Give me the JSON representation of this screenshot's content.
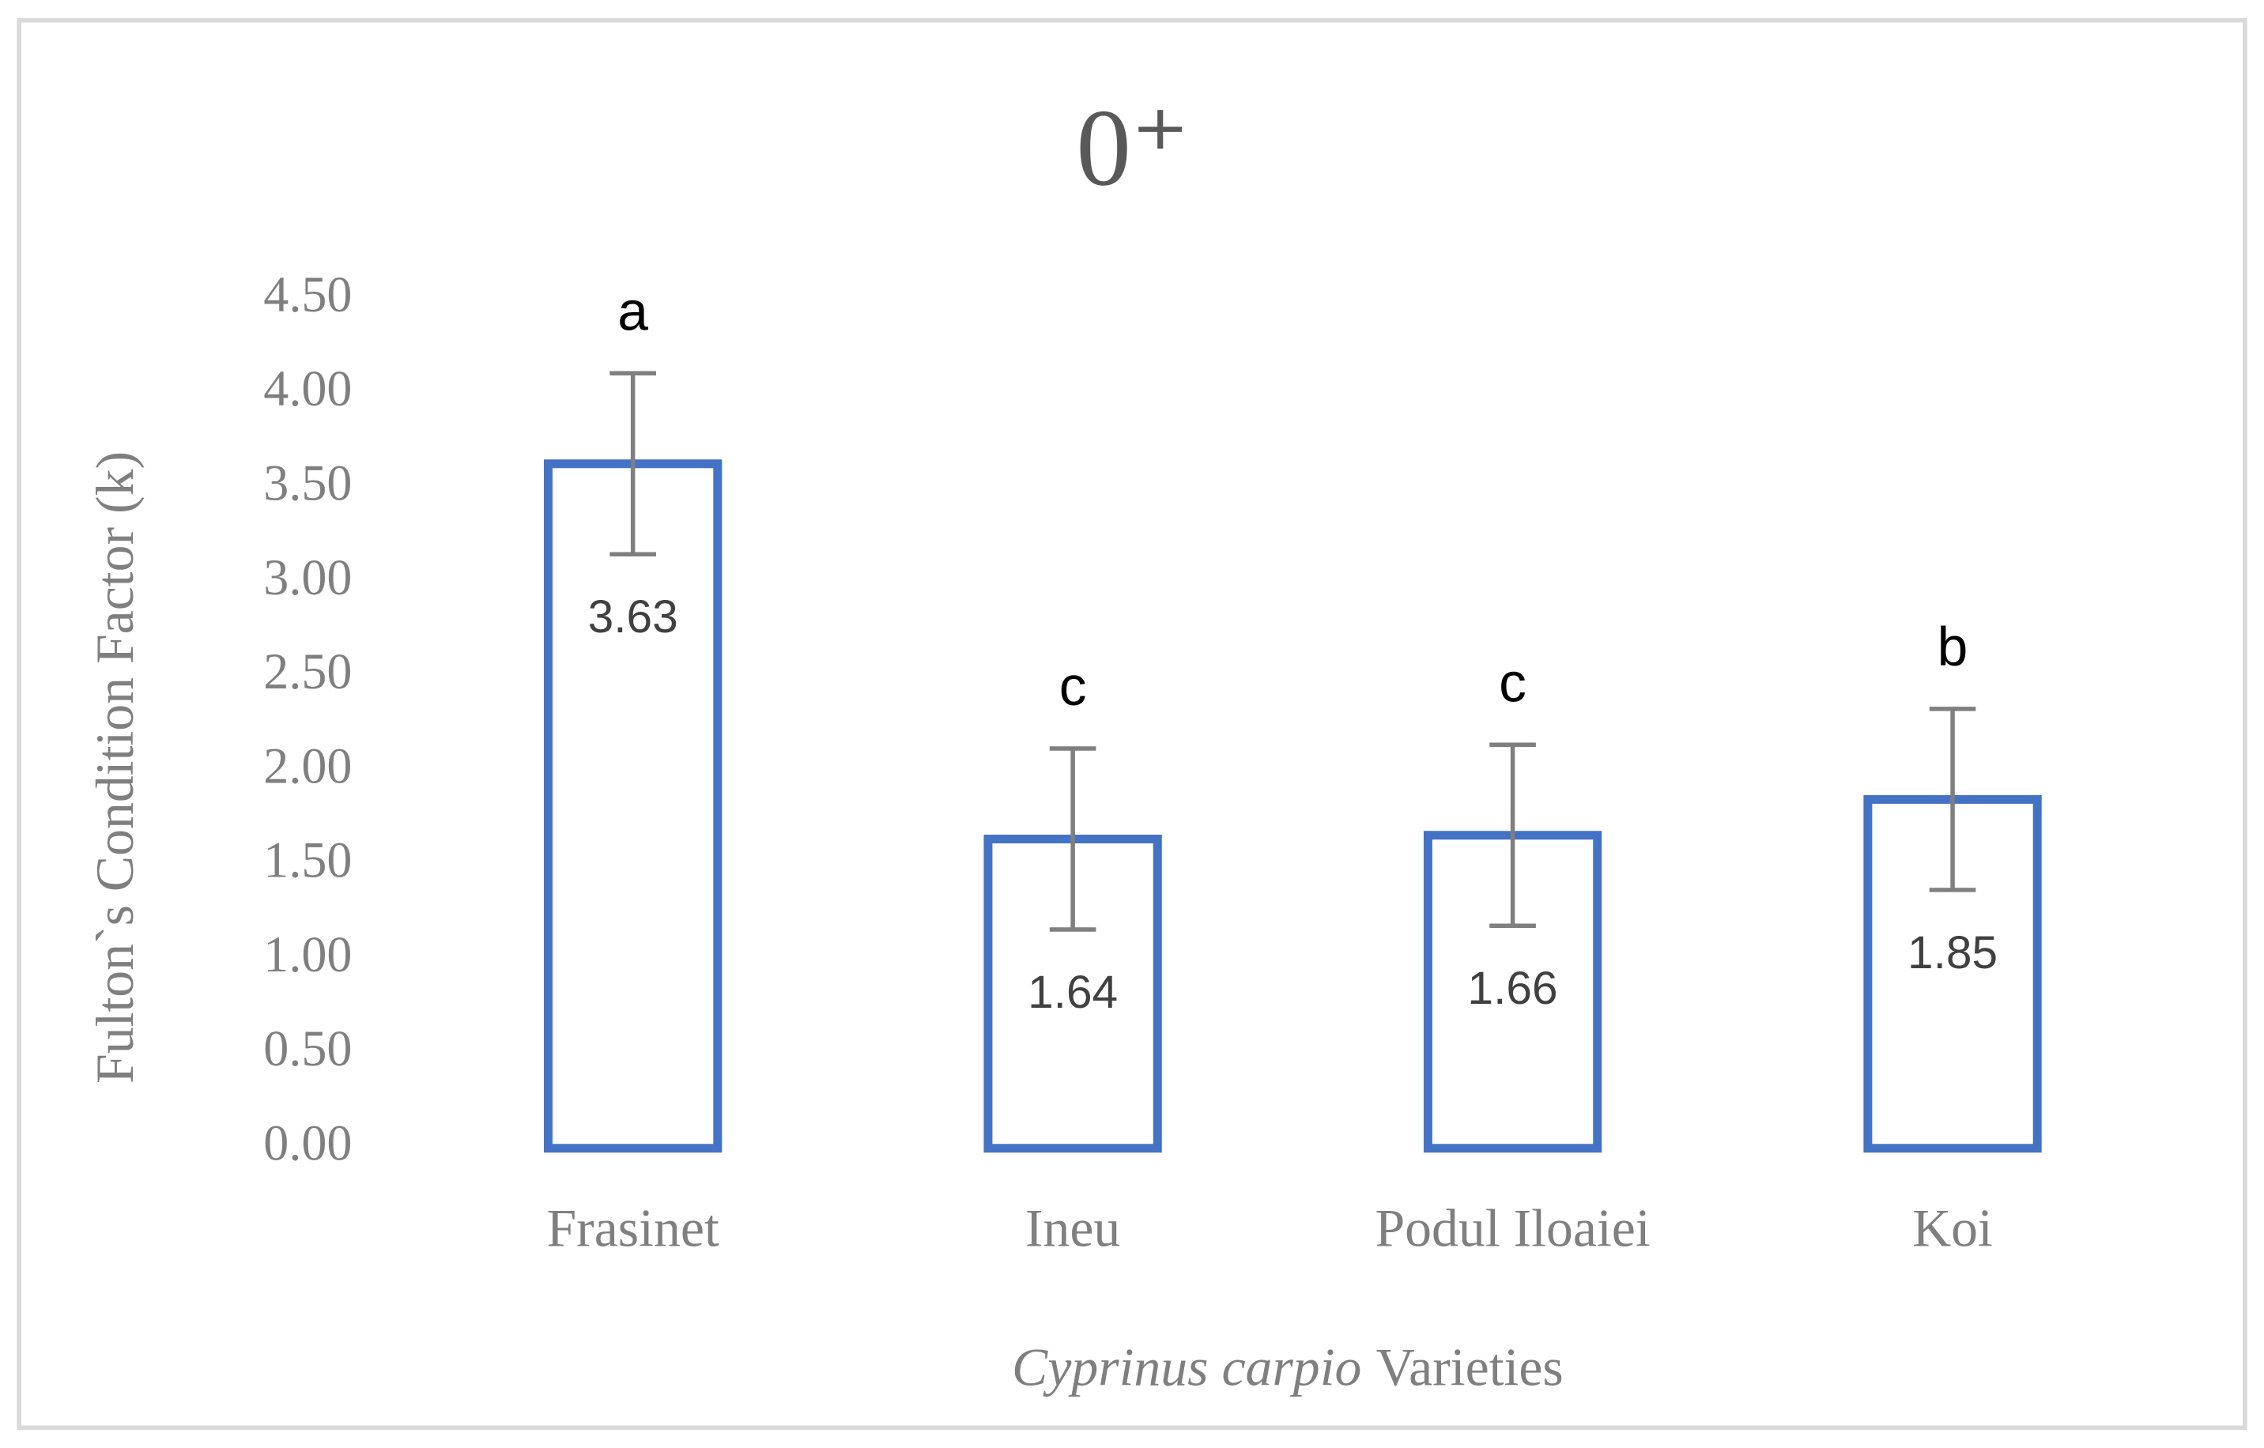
{
  "chart_data": {
    "type": "bar",
    "title": "0⁺",
    "ylabel": "Fulton`s Condition Factor (k)",
    "xlabel": {
      "italic": "Cyprinus carpio",
      "text": "Varieties"
    },
    "categories": [
      "Frasinet",
      "Ineu",
      "Podul Iloaiei",
      "Koi"
    ],
    "values": [
      3.63,
      1.64,
      1.66,
      1.85
    ],
    "errors": [
      0.48,
      0.48,
      0.48,
      0.48
    ],
    "annotations": [
      "a",
      "c",
      "c",
      "b"
    ],
    "color": "#4472c4",
    "error_color": "#7f7f7f",
    "ylim": [
      0,
      4.5
    ],
    "yticks": [
      {
        "value": 0,
        "label": "0.00"
      },
      {
        "value": 0.5,
        "label": "0.50"
      },
      {
        "value": 1,
        "label": "1.00"
      },
      {
        "value": 1.5,
        "label": "1.50"
      },
      {
        "value": 2,
        "label": "2.00"
      },
      {
        "value": 2.5,
        "label": "2.50"
      },
      {
        "value": 3,
        "label": "3.00"
      },
      {
        "value": 3.5,
        "label": "3.50"
      },
      {
        "value": 4,
        "label": "4.00"
      },
      {
        "value": 4.5,
        "label": "4.50"
      }
    ],
    "grid": false
  }
}
